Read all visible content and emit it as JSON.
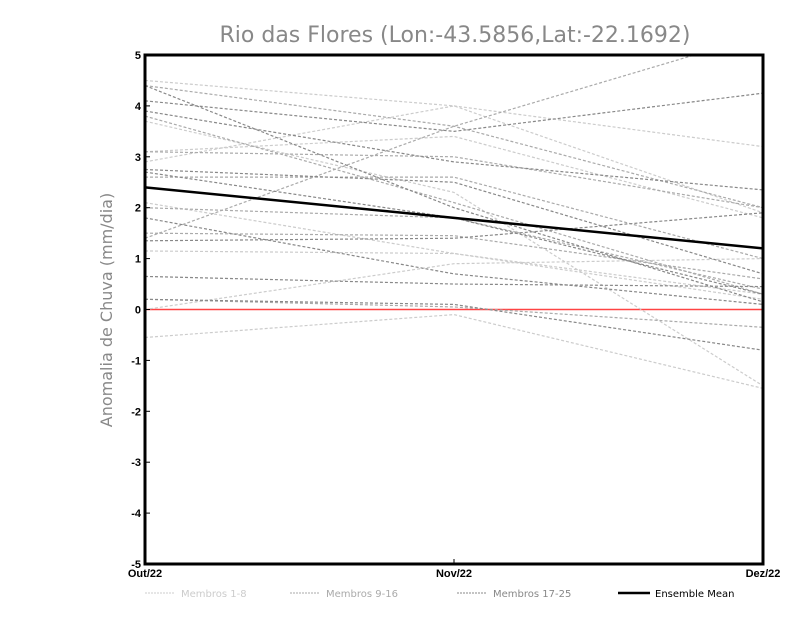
{
  "chart_data": {
    "type": "line",
    "title": "Rio das Flores (Lon:-43.5856,Lat:-22.1692)",
    "xlabel": "",
    "ylabel": "Anomalia de Chuva (mm/dia)",
    "categories": [
      "Out/22",
      "Nov/22",
      "Dez/22"
    ],
    "ylim": [
      -5,
      5
    ],
    "yticks": [
      "-5",
      "-4",
      "-3",
      "-2",
      "-1",
      "0",
      "1",
      "2",
      "3",
      "4",
      "5"
    ],
    "grid": false,
    "legend_position": "bottom",
    "zero_line_color": "#ff4444",
    "groups": [
      {
        "name": "Membros 1-8",
        "color": "#cccccc",
        "series": [
          [
            4.5,
            4.0,
            3.2
          ],
          [
            3.7,
            2.3,
            -1.5
          ],
          [
            2.9,
            4.0,
            1.9
          ],
          [
            1.15,
            1.1,
            0.3
          ],
          [
            0.0,
            0.9,
            1.0
          ],
          [
            -0.55,
            -0.1,
            -1.55
          ],
          [
            2.1,
            1.1,
            0.2
          ],
          [
            3.1,
            3.4,
            1.8
          ]
        ]
      },
      {
        "name": "Membros 9-16",
        "color": "#aaaaaa",
        "series": [
          [
            4.4,
            3.6,
            2.0
          ],
          [
            3.1,
            3.0,
            2.0
          ],
          [
            2.0,
            1.8,
            0.4
          ],
          [
            1.5,
            1.45,
            0.6
          ],
          [
            0.2,
            0.05,
            -0.35
          ],
          [
            1.4,
            3.6,
            5.4
          ],
          [
            2.6,
            2.6,
            1.0
          ],
          [
            3.8,
            2.1,
            0.3
          ]
        ]
      },
      {
        "name": "Membros 17-25",
        "color": "#888888",
        "series": [
          [
            4.1,
            3.5,
            4.25
          ],
          [
            3.9,
            2.9,
            2.35
          ],
          [
            2.75,
            2.5,
            0.7
          ],
          [
            1.8,
            0.7,
            0.1
          ],
          [
            0.65,
            0.5,
            0.45
          ],
          [
            4.4,
            2.0,
            0.15
          ],
          [
            1.35,
            1.4,
            1.9
          ],
          [
            2.7,
            1.8,
            0.3
          ],
          [
            0.2,
            0.1,
            -0.8
          ]
        ]
      }
    ],
    "ensemble_mean": {
      "name": "Ensemble Mean",
      "color": "#000000",
      "values": [
        2.4,
        1.8,
        1.2
      ]
    }
  }
}
